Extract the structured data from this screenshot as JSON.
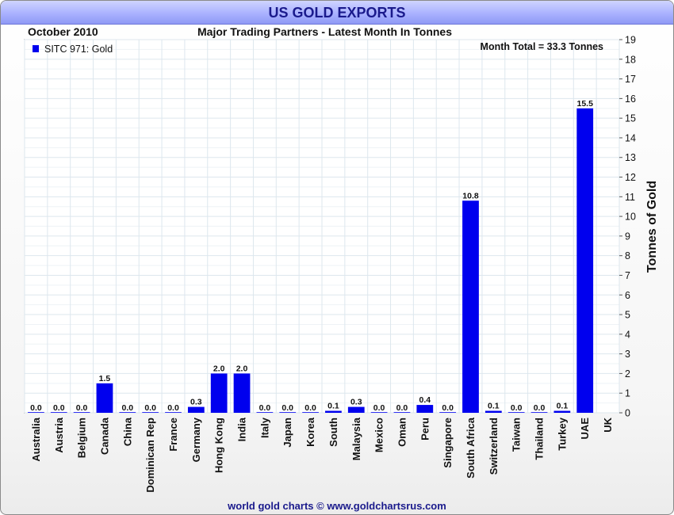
{
  "header": {
    "title": "US GOLD EXPORTS",
    "period": "October 2010",
    "subtitle": "Major Trading Partners - Latest Month In Tonnes"
  },
  "footer": {
    "credit": "world gold charts © www.goldchartsrus.com"
  },
  "colors": {
    "bar": "#0000ee",
    "title_text": "#1a1a8c",
    "grid": "#dde7ee"
  },
  "chart_data": {
    "type": "bar",
    "title": "US GOLD EXPORTS",
    "subtitle": "Major Trading Partners - Latest Month In Tonnes",
    "xlabel": "",
    "ylabel": "Tonnes of Gold",
    "ylim": [
      0,
      19
    ],
    "y_ticks": [
      0,
      1,
      2,
      3,
      4,
      5,
      6,
      7,
      8,
      9,
      10,
      11,
      12,
      13,
      14,
      15,
      16,
      17,
      18,
      19
    ],
    "y_axis_side": "right",
    "grid": true,
    "legend": {
      "label": "SITC 971: Gold",
      "position": "top-left"
    },
    "annotation": "Month Total = 33.3 Tonnes",
    "categories": [
      "Australia",
      "Austria",
      "Belgium",
      "Canada",
      "China",
      "Dominican Rep",
      "France",
      "Germany",
      "Hong Kong",
      "India",
      "Italy",
      "Japan",
      "Korea",
      "South",
      "Malaysia",
      "Mexico",
      "Oman",
      "Peru",
      "Singapore",
      "South Africa",
      "Switzerland",
      "Taiwan",
      "Thailand",
      "Turkey",
      "UAE",
      "UK"
    ],
    "values": [
      0.0,
      0.0,
      0.0,
      1.5,
      0.0,
      0.0,
      0.0,
      0.3,
      2.0,
      2.0,
      0.0,
      0.0,
      0.0,
      0.1,
      0.3,
      0.0,
      0.0,
      0.4,
      0.0,
      10.8,
      0.1,
      0.0,
      0.0,
      0.1,
      15.5,
      null
    ],
    "value_labels": [
      "0.0",
      "0.0",
      "0.0",
      "1.5",
      "0.0",
      "0.0",
      "0.0",
      "0.3",
      "2.0",
      "2.0",
      "0.0",
      "0.0",
      "0.0",
      "0.1",
      "0.3",
      "0.0",
      "0.0",
      "0.4",
      "0.0",
      "10.8",
      "0.1",
      "0.0",
      "0.0",
      "0.1",
      "15.5",
      ""
    ]
  }
}
